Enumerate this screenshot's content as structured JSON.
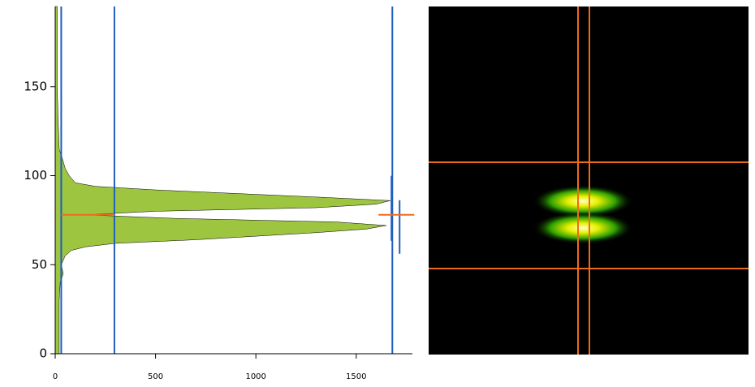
{
  "chart_data": {
    "type": "area",
    "orientation": "horizontal",
    "positions": [
      0,
      10,
      20,
      30,
      40,
      45,
      50,
      55,
      58,
      60,
      62,
      64,
      66,
      68,
      70,
      72,
      74,
      76,
      78,
      80,
      82,
      84,
      86,
      88,
      90,
      92,
      94,
      96,
      100,
      104,
      108,
      115,
      130,
      150,
      170,
      195
    ],
    "values": [
      20,
      20,
      20,
      20,
      25,
      40,
      30,
      50,
      80,
      150,
      300,
      700,
      1000,
      1300,
      1550,
      1650,
      1400,
      600,
      150,
      500,
      1300,
      1600,
      1670,
      1300,
      900,
      500,
      200,
      100,
      70,
      50,
      40,
      20,
      15,
      10,
      10,
      10
    ],
    "color": "#9dc540",
    "xlim": [
      0,
      1780
    ],
    "ylim": [
      0,
      195
    ],
    "xticks": [
      0,
      500,
      1000,
      1500
    ],
    "yticks": [
      0,
      50,
      100,
      150
    ],
    "vlines": [
      30,
      295,
      1680
    ],
    "vline_color": "#1f5fbf",
    "hline": 78,
    "hline_color": "#f06a1c",
    "cross": {
      "x": 1700,
      "y": 78
    }
  }
}
